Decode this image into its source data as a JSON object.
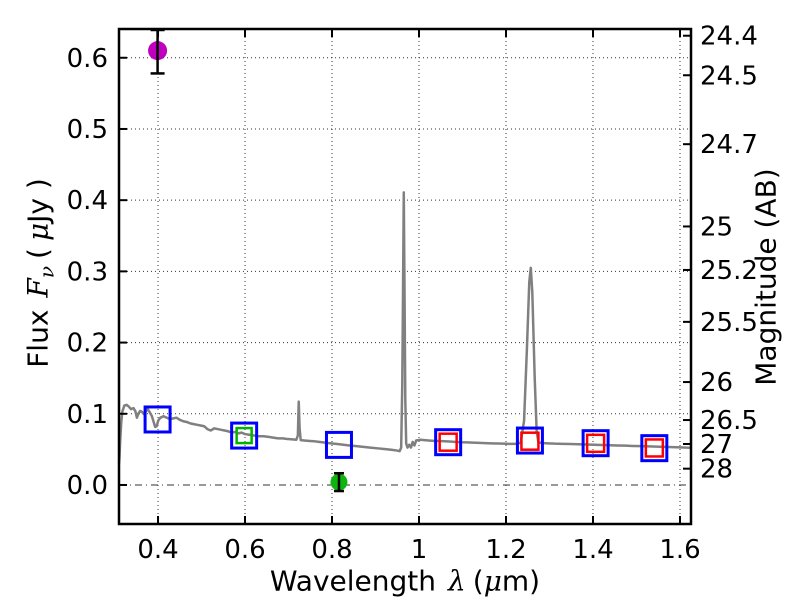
{
  "figure": {
    "background": "#ffffff"
  },
  "chart_data": {
    "type": "line",
    "title": "",
    "xlabel": "Wavelength λ (μm)",
    "ylabel": "Flux Fν ( μJy )",
    "y2label": "Magnitude (AB)",
    "label_parts": {
      "x": {
        "prefix": "Wavelength",
        "lambda": "λ",
        "open": "(",
        "mu": "μ",
        "close": "m)"
      },
      "y": {
        "prefix": "Flux",
        "F": "F",
        "nu": "ν",
        "open": "(",
        "mu": "μ",
        "close": "Jy )"
      },
      "y2": "Magnitude (AB)"
    },
    "xlim": [
      0.3103,
      1.6253
    ],
    "ylim": [
      -0.0548,
      0.6404
    ],
    "xticks": [
      0.4,
      0.6,
      0.8,
      1.0,
      1.2,
      1.4,
      1.6
    ],
    "xtick_labels": [
      "0.4",
      "0.6",
      "0.8",
      "1",
      "1.2",
      "1.4",
      "1.6"
    ],
    "yticks": [
      0.0,
      0.1,
      0.2,
      0.3,
      0.4,
      0.5,
      0.6
    ],
    "ytick_labels": [
      "0.0",
      "0.1",
      "0.2",
      "0.3",
      "0.4",
      "0.5",
      "0.6"
    ],
    "y2ticks": [
      24.4,
      24.5,
      24.7,
      25,
      25.2,
      25.5,
      26,
      26.5,
      27,
      28
    ],
    "y2tick_labels": [
      "24.4",
      "24.5",
      "24.7",
      "25",
      "25.2",
      "25.5",
      "26",
      "26.5",
      "27",
      "28"
    ],
    "y2_mag_zeropoint": 23.9,
    "grid": "dotted",
    "zero_line_style": "dashdot",
    "colors": {
      "spectrum": "#808080",
      "model_square": "#0000ff",
      "observed_square": "#ff0000",
      "green_square": "#00b400",
      "magenta_point": "#bf00bf",
      "green_point": "#10b410",
      "errorbar": "#000000",
      "frame": "#000000",
      "grid": "#333333"
    },
    "series": [
      {
        "name": "model-spectrum",
        "kind": "line",
        "color": "#808080",
        "width": 2.5,
        "points": [
          [
            0.3103,
            0.03
          ],
          [
            0.3115,
            0.04
          ],
          [
            0.313,
            0.062
          ],
          [
            0.3155,
            0.088
          ],
          [
            0.318,
            0.103
          ],
          [
            0.3225,
            0.1115
          ],
          [
            0.328,
            0.1125
          ],
          [
            0.333,
            0.11
          ],
          [
            0.338,
            0.1065
          ],
          [
            0.3435,
            0.108
          ],
          [
            0.348,
            0.1035
          ],
          [
            0.3515,
            0.0945
          ],
          [
            0.355,
            0.1005
          ],
          [
            0.359,
            0.104
          ],
          [
            0.3635,
            0.1025
          ],
          [
            0.3675,
            0.0995
          ],
          [
            0.372,
            0.1035
          ],
          [
            0.3765,
            0.1065
          ],
          [
            0.3815,
            0.1015
          ],
          [
            0.386,
            0.0965
          ],
          [
            0.39,
            0.0885
          ],
          [
            0.3935,
            0.0815
          ],
          [
            0.397,
            0.0825
          ],
          [
            0.4005,
            0.0905
          ],
          [
            0.4055,
            0.0945
          ],
          [
            0.4125,
            0.0965
          ],
          [
            0.42,
            0.0945
          ],
          [
            0.4275,
            0.0925
          ],
          [
            0.435,
            0.0935
          ],
          [
            0.4425,
            0.0945
          ],
          [
            0.45,
            0.0915
          ],
          [
            0.458,
            0.0895
          ],
          [
            0.466,
            0.0885
          ],
          [
            0.474,
            0.0865
          ],
          [
            0.482,
            0.0855
          ],
          [
            0.49,
            0.0845
          ],
          [
            0.498,
            0.0835
          ],
          [
            0.506,
            0.0825
          ],
          [
            0.5135,
            0.0785
          ],
          [
            0.521,
            0.0765
          ],
          [
            0.529,
            0.0795
          ],
          [
            0.537,
            0.0785
          ],
          [
            0.545,
            0.0775
          ],
          [
            0.553,
            0.0765
          ],
          [
            0.561,
            0.0755
          ],
          [
            0.569,
            0.0735
          ],
          [
            0.577,
            0.0745
          ],
          [
            0.5845,
            0.0725
          ],
          [
            0.592,
            0.0735
          ],
          [
            0.6,
            0.0715
          ],
          [
            0.61,
            0.0705
          ],
          [
            0.621,
            0.0695
          ],
          [
            0.632,
            0.0685
          ],
          [
            0.643,
            0.0685
          ],
          [
            0.654,
            0.0675
          ],
          [
            0.665,
            0.0665
          ],
          [
            0.676,
            0.0655
          ],
          [
            0.687,
            0.0655
          ],
          [
            0.698,
            0.0645
          ],
          [
            0.709,
            0.064
          ],
          [
            0.718,
            0.0635
          ],
          [
            0.7215,
            0.0695
          ],
          [
            0.7235,
            0.117
          ],
          [
            0.7255,
            0.0795
          ],
          [
            0.728,
            0.063
          ],
          [
            0.736,
            0.0625
          ],
          [
            0.746,
            0.062
          ],
          [
            0.758,
            0.0615
          ],
          [
            0.77,
            0.0605
          ],
          [
            0.784,
            0.0595
          ],
          [
            0.798,
            0.0585
          ],
          [
            0.812,
            0.0575
          ],
          [
            0.826,
            0.0565
          ],
          [
            0.84,
            0.0555
          ],
          [
            0.856,
            0.0545
          ],
          [
            0.872,
            0.0535
          ],
          [
            0.888,
            0.0525
          ],
          [
            0.904,
            0.0515
          ],
          [
            0.92,
            0.0505
          ],
          [
            0.936,
            0.0495
          ],
          [
            0.948,
            0.0485
          ],
          [
            0.9555,
            0.0475
          ],
          [
            0.959,
            0.0525
          ],
          [
            0.9615,
            0.14
          ],
          [
            0.9635,
            0.29
          ],
          [
            0.965,
            0.411
          ],
          [
            0.9665,
            0.29
          ],
          [
            0.9685,
            0.12
          ],
          [
            0.9705,
            0.0585
          ],
          [
            0.9735,
            0.0525
          ],
          [
            0.9775,
            0.0565
          ],
          [
            0.9815,
            0.0525
          ],
          [
            0.9855,
            0.0605
          ],
          [
            0.9895,
            0.0555
          ],
          [
            0.9935,
            0.0625
          ],
          [
            0.998,
            0.063
          ],
          [
            1.004,
            0.0635
          ],
          [
            1.012,
            0.063
          ],
          [
            1.022,
            0.0625
          ],
          [
            1.034,
            0.062
          ],
          [
            1.046,
            0.0618
          ],
          [
            1.058,
            0.0615
          ],
          [
            1.07,
            0.061
          ],
          [
            1.082,
            0.0605
          ],
          [
            1.096,
            0.06
          ],
          [
            1.11,
            0.0598
          ],
          [
            1.124,
            0.0595
          ],
          [
            1.138,
            0.0592
          ],
          [
            1.152,
            0.0588
          ],
          [
            1.166,
            0.0585
          ],
          [
            1.18,
            0.0582
          ],
          [
            1.194,
            0.058
          ],
          [
            1.208,
            0.0578
          ],
          [
            1.222,
            0.0578
          ],
          [
            1.2335,
            0.059
          ],
          [
            1.2415,
            0.09
          ],
          [
            1.248,
            0.19
          ],
          [
            1.2535,
            0.285
          ],
          [
            1.257,
            0.305
          ],
          [
            1.2605,
            0.27
          ],
          [
            1.266,
            0.15
          ],
          [
            1.2705,
            0.075
          ],
          [
            1.2745,
            0.06
          ],
          [
            1.282,
            0.059
          ],
          [
            1.296,
            0.0585
          ],
          [
            1.312,
            0.058
          ],
          [
            1.33,
            0.0578
          ],
          [
            1.348,
            0.0575
          ],
          [
            1.366,
            0.0572
          ],
          [
            1.384,
            0.0568
          ],
          [
            1.402,
            0.0565
          ],
          [
            1.42,
            0.0562
          ],
          [
            1.438,
            0.0558
          ],
          [
            1.456,
            0.0555
          ],
          [
            1.474,
            0.0552
          ],
          [
            1.492,
            0.0548
          ],
          [
            1.51,
            0.0545
          ],
          [
            1.528,
            0.0542
          ],
          [
            1.546,
            0.0538
          ],
          [
            1.564,
            0.0535
          ],
          [
            1.582,
            0.0532
          ],
          [
            1.6,
            0.0528
          ],
          [
            1.6253,
            0.0522
          ]
        ]
      },
      {
        "name": "model-photometry-squares",
        "kind": "scatter",
        "marker": "open-square",
        "color": "#0000ff",
        "size": 25,
        "stroke": 3,
        "points": [
          [
            0.399,
            0.092
          ],
          [
            0.598,
            0.0694
          ],
          [
            0.816,
            0.0563
          ],
          [
            1.067,
            0.0601
          ],
          [
            1.255,
            0.0624
          ],
          [
            1.406,
            0.0587
          ],
          [
            1.541,
            0.0517
          ]
        ]
      },
      {
        "name": "observed-photometry-red-squares",
        "kind": "scatter",
        "marker": "open-square",
        "color": "#ff0000",
        "size": 17,
        "stroke": 2.5,
        "points": [
          [
            1.067,
            0.0601
          ],
          [
            1.255,
            0.0615
          ],
          [
            1.406,
            0.0585
          ],
          [
            1.541,
            0.052
          ]
        ]
      },
      {
        "name": "observed-photometry-green-square",
        "kind": "scatter",
        "marker": "open-square",
        "color": "#00b400",
        "size": 15,
        "stroke": 2.5,
        "points": [
          [
            0.598,
            0.0694
          ]
        ]
      },
      {
        "name": "magenta-detection",
        "kind": "scatter",
        "marker": "filled-circle",
        "color": "#bf00bf",
        "radius": 9.5,
        "points": [
          [
            0.399,
            0.61
          ]
        ],
        "yerr_minus": 0.032,
        "yerr_plus": 0.029,
        "err_color": "#000000",
        "cap_half": 7
      },
      {
        "name": "green-detection",
        "kind": "scatter",
        "marker": "filled-circle",
        "color": "#10b410",
        "radius": 8.5,
        "points": [
          [
            0.816,
            0.004
          ]
        ],
        "yerr_minus": 0.0125,
        "yerr_plus": 0.0125,
        "err_color": "#000000",
        "cap_half": 5
      }
    ]
  }
}
